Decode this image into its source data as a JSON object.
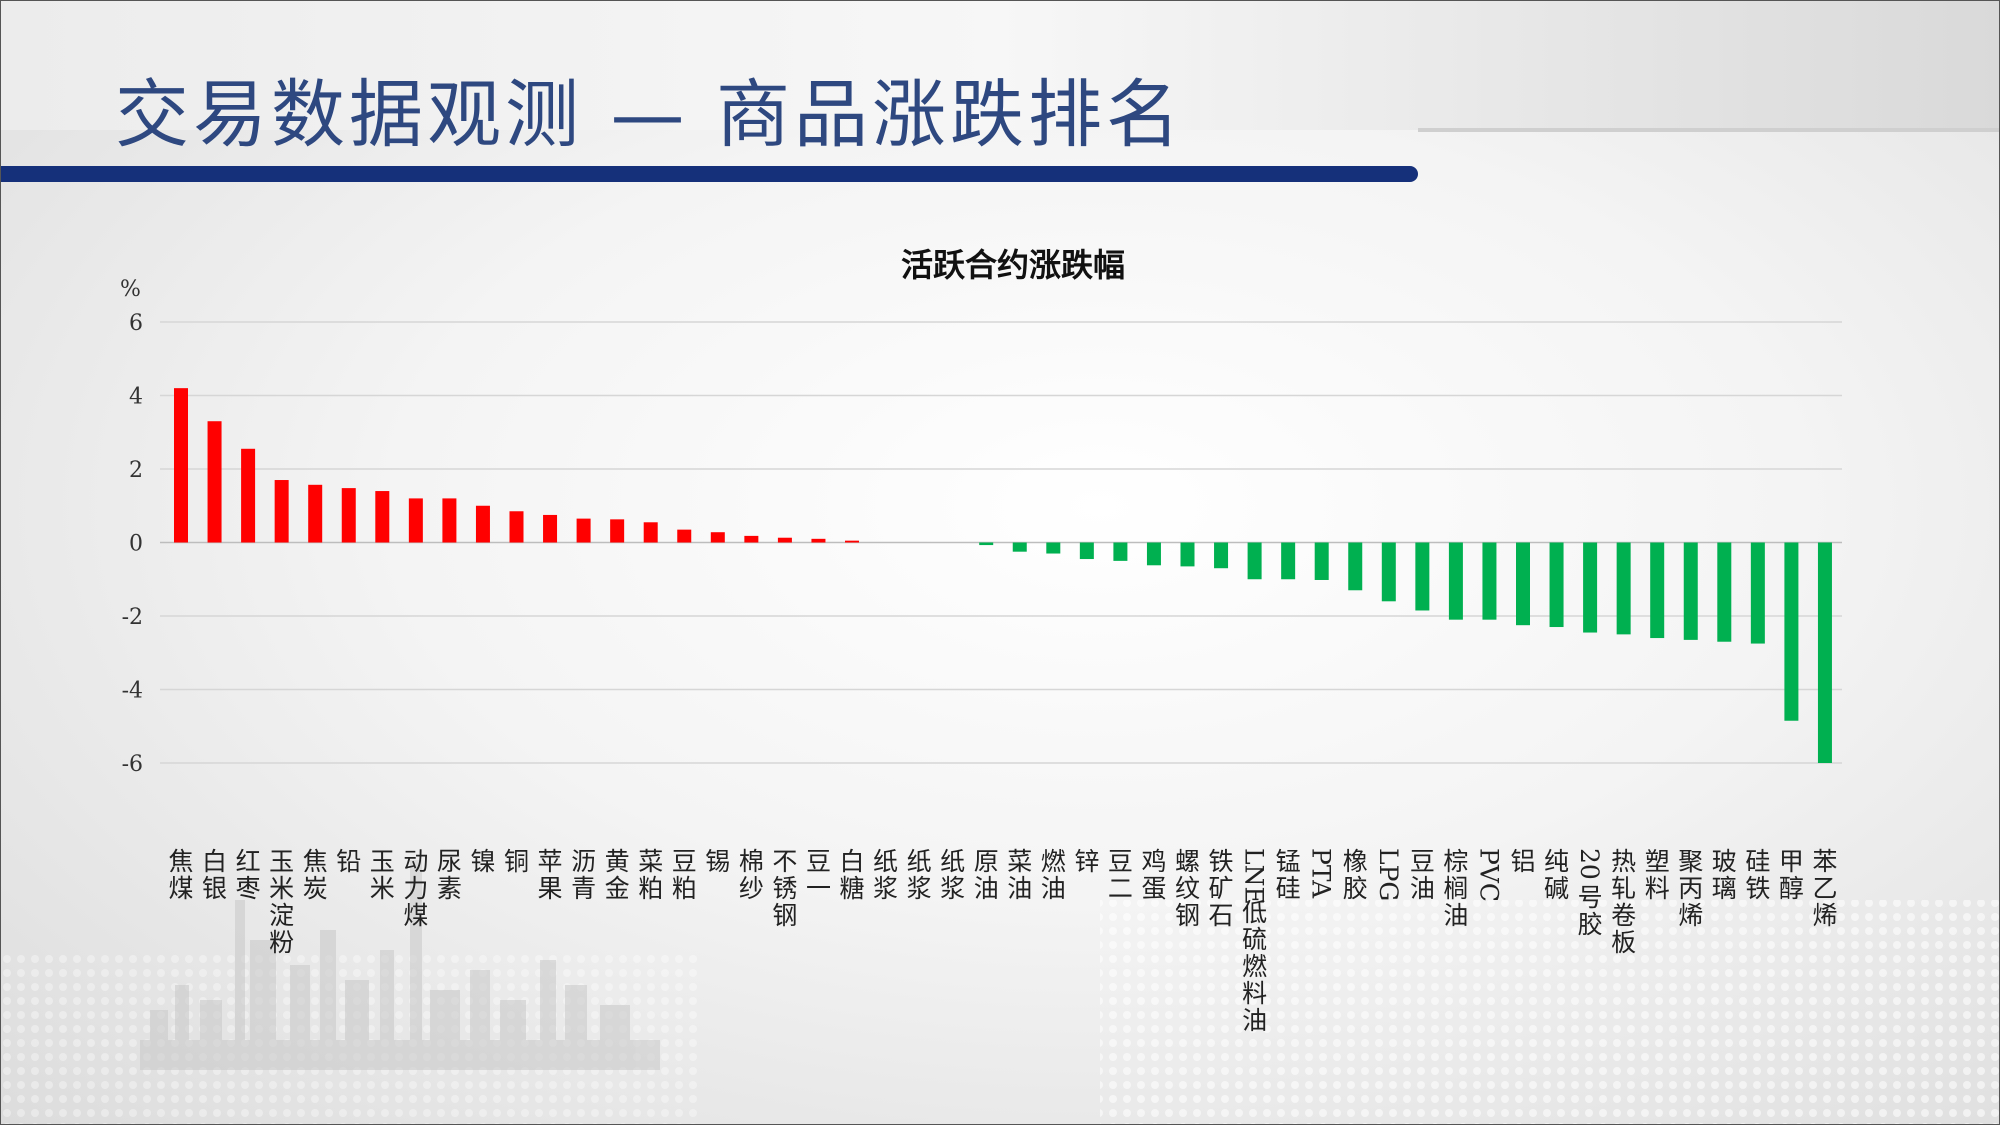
{
  "header": {
    "title": "交易数据观测 — 商品涨跌排名"
  },
  "colors": {
    "up": "#ff0000",
    "down": "#00b050",
    "accent": "#15307a",
    "title": "#2e4880"
  },
  "chart_data": {
    "type": "bar",
    "title": "活跃合约涨跌幅",
    "ylabel": "%",
    "xlabel": "",
    "ylim": [
      -6,
      6
    ],
    "yticks": [
      6,
      4,
      2,
      0,
      -2,
      -4,
      -6
    ],
    "ytick_labels": [
      "6",
      "4",
      "2",
      "0",
      "-2",
      "-4",
      "-6"
    ],
    "grid": true,
    "categories": [
      "焦煤",
      "白银",
      "红枣",
      "玉米淀粉",
      "焦炭",
      "铅",
      "玉米",
      "动力煤",
      "尿素",
      "镍",
      "铜",
      "苹果",
      "沥青",
      "黄金",
      "菜粕",
      "豆粕",
      "锡",
      "棉纱",
      "不锈钢",
      "豆一",
      "白糖",
      "纸浆",
      "纸浆",
      "纸浆",
      "原油",
      "菜油",
      "燃油",
      "锌",
      "豆二",
      "鸡蛋",
      "螺纹钢",
      "铁矿石",
      "LNE低硫燃料油",
      "锰硅",
      "PTA",
      "橡胶",
      "LPG",
      "豆油",
      "棕榈油",
      "PVC",
      "铝",
      "纯碱",
      "20号胶",
      "热轧卷板",
      "塑料",
      "聚丙烯",
      "玻璃",
      "硅铁",
      "甲醇",
      "苯乙烯"
    ],
    "values": [
      4.2,
      3.3,
      2.55,
      1.7,
      1.57,
      1.48,
      1.4,
      1.2,
      1.2,
      1.0,
      0.85,
      0.75,
      0.65,
      0.63,
      0.55,
      0.35,
      0.28,
      0.18,
      0.13,
      0.1,
      0.05,
      0,
      0,
      0,
      -0.07,
      -0.25,
      -0.3,
      -0.45,
      -0.5,
      -0.62,
      -0.65,
      -0.7,
      -1.0,
      -1.0,
      -1.02,
      -1.3,
      -1.6,
      -1.85,
      -2.1,
      -2.1,
      -2.25,
      -2.3,
      -2.45,
      -2.5,
      -2.6,
      -2.65,
      -2.7,
      -2.75,
      -4.85,
      -6.0
    ]
  }
}
